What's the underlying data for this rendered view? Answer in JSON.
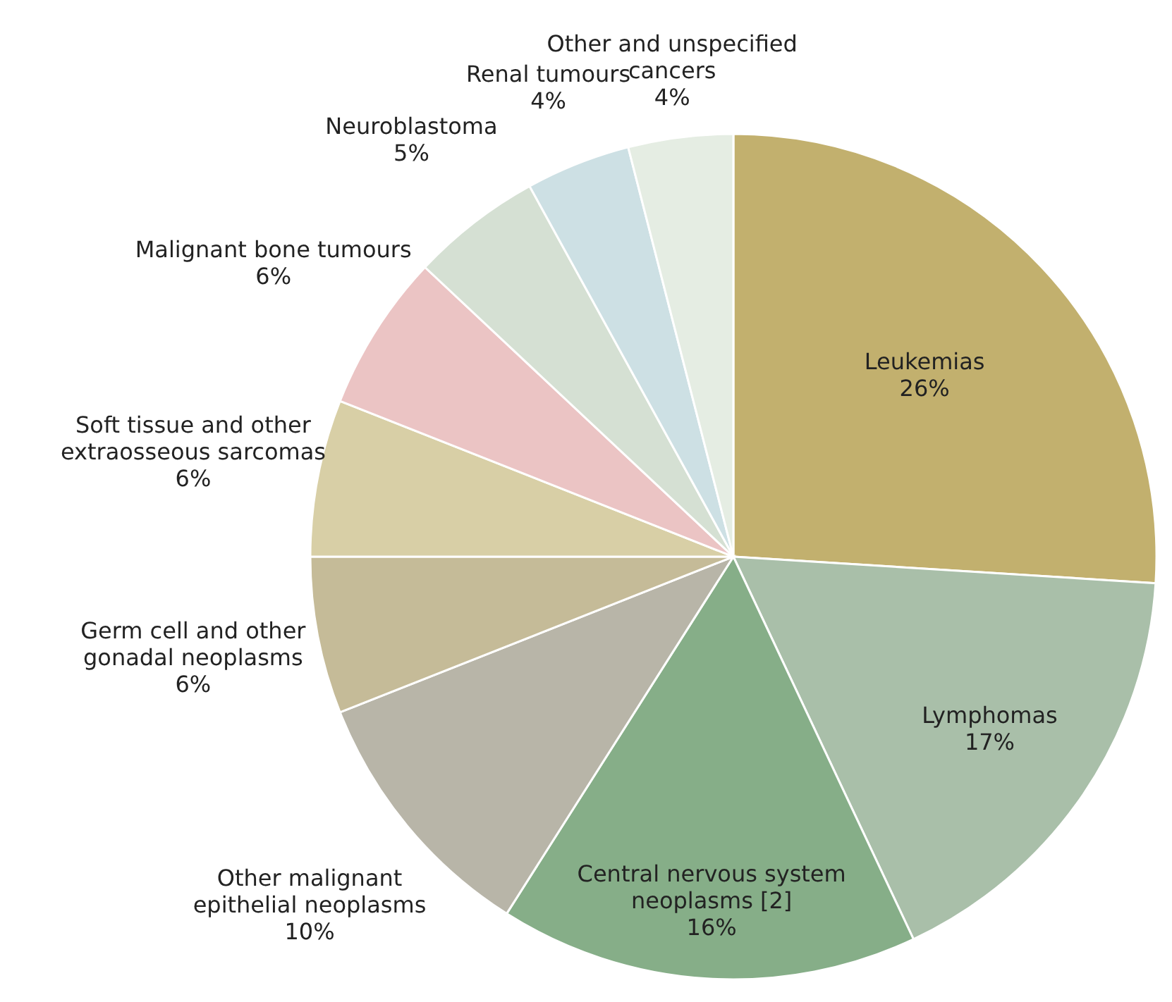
{
  "chart_data": {
    "type": "pie",
    "categories": [
      "Leukemias",
      "Lymphomas",
      "Central nervous system neoplasms [2]",
      "Other malignant epithelial neoplasms",
      "Germ cell and other gonadal neoplasms",
      "Soft tissue and other extraosseous sarcomas",
      "Malignant bone tumours",
      "Neuroblastoma",
      "Renal tumours",
      "Other and unspecified cancers"
    ],
    "values": [
      26,
      17,
      16,
      10,
      6,
      6,
      6,
      5,
      4,
      4
    ],
    "value_labels": [
      "26%",
      "17%",
      "16%",
      "10%",
      "6%",
      "6%",
      "6%",
      "5%",
      "4%",
      "4%"
    ],
    "colors": [
      "#c2b06e",
      "#a9bfa9",
      "#86ae88",
      "#b8b5a8",
      "#c5bb98",
      "#d8cfa6",
      "#ebc4c4",
      "#d5e0d3",
      "#cde0e4",
      "#e5ede3"
    ]
  }
}
